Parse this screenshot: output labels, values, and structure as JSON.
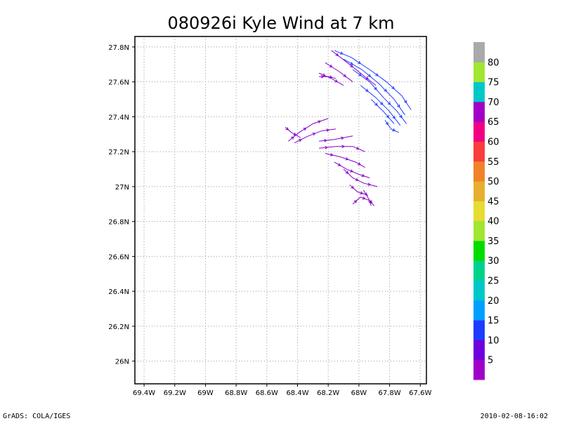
{
  "chart_data": {
    "type": "streamline",
    "title": "080926i Kyle Wind at 7 km",
    "x_ticks": [
      "69.4W",
      "69.2W",
      "69W",
      "68.8W",
      "68.6W",
      "68.4W",
      "68.2W",
      "68W",
      "67.8W",
      "67.6W"
    ],
    "x_tick_values": [
      -69.4,
      -69.2,
      -69.0,
      -68.8,
      -68.6,
      -68.4,
      -68.2,
      -68.0,
      -67.8,
      -67.6
    ],
    "y_ticks": [
      "26N",
      "26.2N",
      "26.4N",
      "26.6N",
      "26.8N",
      "27N",
      "27.2N",
      "27.4N",
      "27.6N",
      "27.8N"
    ],
    "y_tick_values": [
      26.0,
      26.2,
      26.4,
      26.6,
      26.8,
      27.0,
      27.2,
      27.4,
      27.6,
      27.8
    ],
    "xlim": [
      -69.46,
      -67.56
    ],
    "ylim": [
      25.87,
      27.86
    ],
    "grid": true,
    "colorbar": {
      "labels": [
        "5",
        "10",
        "15",
        "20",
        "25",
        "30",
        "35",
        "40",
        "45",
        "50",
        "55",
        "60",
        "65",
        "70",
        "75",
        "80"
      ],
      "colors": [
        "#a000c8",
        "#6e00dc",
        "#1e3cff",
        "#00a0ff",
        "#00c8c8",
        "#00d28c",
        "#00dc00",
        "#a0e632",
        "#e6dc32",
        "#e6af2d",
        "#f08228",
        "#fa3c3c",
        "#f00082",
        "#a000c8",
        "#00c8c8",
        "#a0e632",
        "#aaaaaa"
      ]
    },
    "streamlines": [
      {
        "speed": "blue",
        "points": [
          [
            -68.16,
            27.78
          ],
          [
            -68.05,
            27.74
          ],
          [
            -67.93,
            27.67
          ],
          [
            -67.82,
            27.6
          ],
          [
            -67.72,
            27.52
          ],
          [
            -67.66,
            27.44
          ]
        ]
      },
      {
        "speed": "blue",
        "points": [
          [
            -68.1,
            27.73
          ],
          [
            -67.98,
            27.67
          ],
          [
            -67.87,
            27.59
          ],
          [
            -67.77,
            27.5
          ],
          [
            -67.7,
            27.41
          ]
        ]
      },
      {
        "speed": "blue",
        "points": [
          [
            -68.04,
            27.67
          ],
          [
            -67.93,
            27.6
          ],
          [
            -67.84,
            27.51
          ],
          [
            -67.75,
            27.43
          ],
          [
            -67.69,
            27.36
          ]
        ]
      },
      {
        "speed": "blue",
        "points": [
          [
            -67.99,
            27.58
          ],
          [
            -67.89,
            27.51
          ],
          [
            -67.8,
            27.43
          ],
          [
            -67.73,
            27.35
          ]
        ]
      },
      {
        "speed": "blue",
        "points": [
          [
            -67.92,
            27.5
          ],
          [
            -67.84,
            27.43
          ],
          [
            -67.77,
            27.36
          ]
        ]
      },
      {
        "speed": "blue",
        "points": [
          [
            -67.83,
            27.38
          ],
          [
            -67.79,
            27.33
          ],
          [
            -67.74,
            27.31
          ]
        ]
      },
      {
        "speed": "purple",
        "points": [
          [
            -68.18,
            27.78
          ],
          [
            -68.09,
            27.72
          ],
          [
            -67.99,
            27.65
          ],
          [
            -67.89,
            27.58
          ]
        ]
      },
      {
        "speed": "purple",
        "points": [
          [
            -68.22,
            27.71
          ],
          [
            -68.13,
            27.66
          ],
          [
            -68.04,
            27.6
          ]
        ]
      },
      {
        "speed": "purple",
        "points": [
          [
            -68.26,
            27.65
          ],
          [
            -68.18,
            27.62
          ],
          [
            -68.1,
            27.58
          ]
        ]
      },
      {
        "speed": "purple",
        "points": [
          [
            -68.26,
            27.63
          ],
          [
            -68.2,
            27.63
          ],
          [
            -68.15,
            27.62
          ]
        ]
      },
      {
        "speed": "purple",
        "points": [
          [
            -68.46,
            27.26
          ],
          [
            -68.39,
            27.31
          ],
          [
            -68.3,
            27.36
          ],
          [
            -68.2,
            27.39
          ]
        ]
      },
      {
        "speed": "purple",
        "points": [
          [
            -68.42,
            27.25
          ],
          [
            -68.33,
            27.29
          ],
          [
            -68.24,
            27.32
          ],
          [
            -68.15,
            27.33
          ]
        ]
      },
      {
        "speed": "purple",
        "points": [
          [
            -68.48,
            27.34
          ],
          [
            -68.44,
            27.31
          ],
          [
            -68.38,
            27.28
          ]
        ]
      },
      {
        "speed": "purple",
        "points": [
          [
            -68.26,
            27.26
          ],
          [
            -68.16,
            27.27
          ],
          [
            -68.04,
            27.29
          ]
        ]
      },
      {
        "speed": "purple",
        "points": [
          [
            -68.26,
            27.22
          ],
          [
            -68.15,
            27.23
          ],
          [
            -68.04,
            27.23
          ],
          [
            -67.96,
            27.2
          ]
        ]
      },
      {
        "speed": "purple",
        "points": [
          [
            -68.22,
            27.19
          ],
          [
            -68.12,
            27.17
          ],
          [
            -68.02,
            27.14
          ],
          [
            -67.96,
            27.11
          ]
        ]
      },
      {
        "speed": "purple",
        "points": [
          [
            -68.16,
            27.14
          ],
          [
            -68.08,
            27.1
          ],
          [
            -68.0,
            27.07
          ],
          [
            -67.93,
            27.05
          ]
        ]
      },
      {
        "speed": "purple",
        "points": [
          [
            -68.1,
            27.1
          ],
          [
            -68.04,
            27.05
          ],
          [
            -67.97,
            27.02
          ],
          [
            -67.88,
            27.0
          ]
        ]
      },
      {
        "speed": "purple",
        "points": [
          [
            -68.06,
            27.01
          ],
          [
            -68.01,
            26.97
          ],
          [
            -67.94,
            26.95
          ]
        ]
      },
      {
        "speed": "purple",
        "points": [
          [
            -68.04,
            26.9
          ],
          [
            -67.99,
            26.94
          ],
          [
            -67.93,
            26.92
          ],
          [
            -67.9,
            26.89
          ]
        ]
      },
      {
        "speed": "purple",
        "points": [
          [
            -67.97,
            26.98
          ],
          [
            -67.93,
            26.92
          ],
          [
            -67.92,
            26.89
          ]
        ]
      }
    ]
  },
  "footer": {
    "left": "GrADS: COLA/IGES",
    "right": "2010-02-08-16:02"
  }
}
